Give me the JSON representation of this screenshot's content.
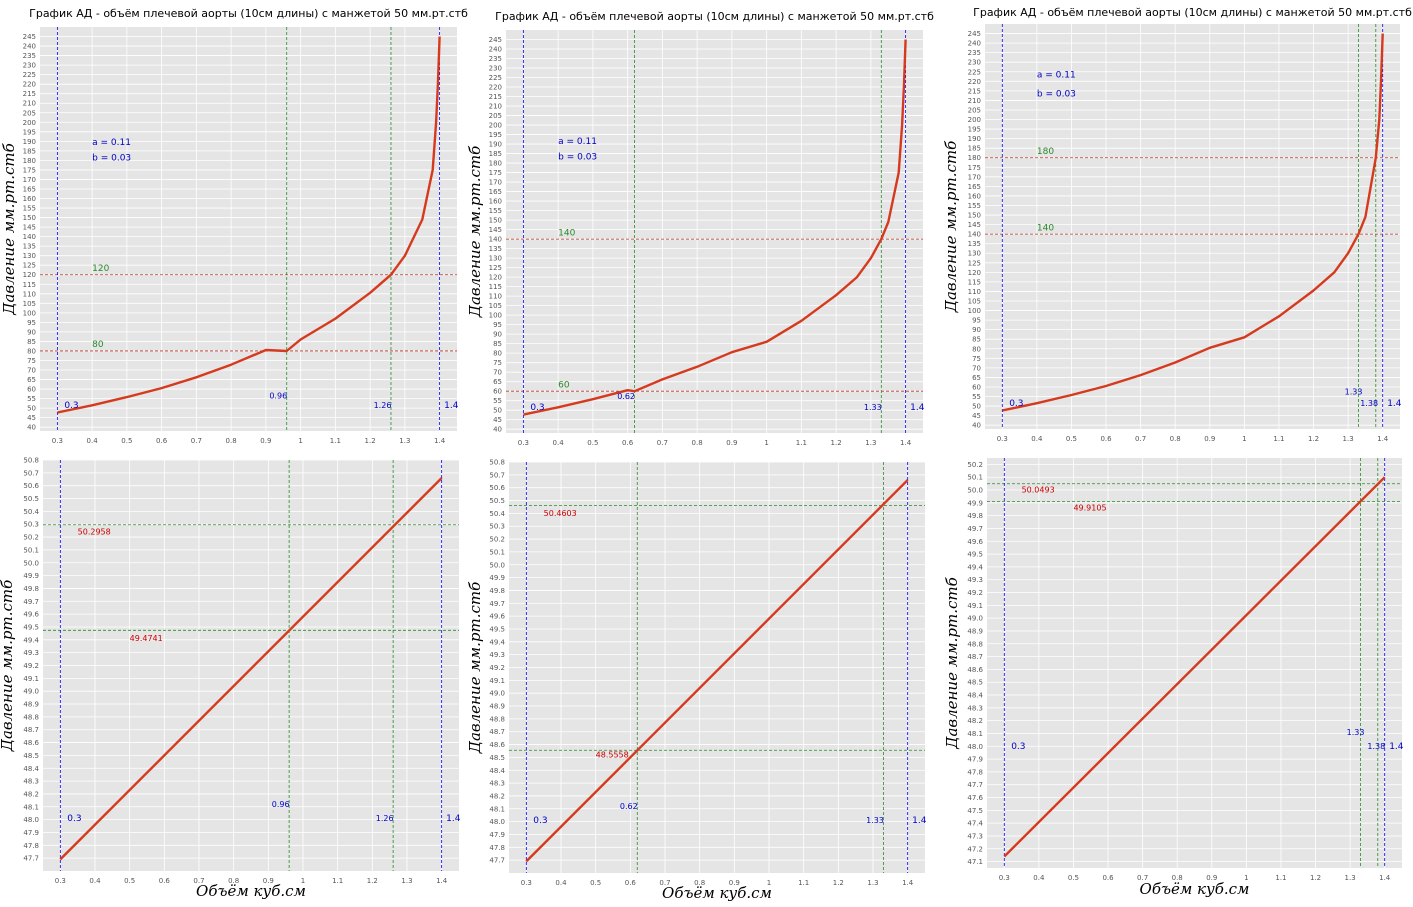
{
  "chart_data": [
    {
      "type": "line",
      "title": "График АД - объём плечевой аорты (10см длины) с манжетой 50 мм.рт.стб",
      "ylabel": "Давление мм.рт.стб",
      "xlabel": "",
      "xlim": [
        0.25,
        1.45
      ],
      "ylim": [
        38,
        250
      ],
      "xticks": [
        0.3,
        0.4,
        0.5,
        0.6,
        0.7,
        0.8,
        0.9,
        1.0,
        1.1,
        1.2,
        1.3,
        1.4
      ],
      "yticks": [
        40,
        45,
        50,
        55,
        60,
        65,
        70,
        75,
        80,
        85,
        90,
        95,
        100,
        105,
        110,
        115,
        120,
        125,
        130,
        135,
        140,
        145,
        150,
        155,
        160,
        165,
        170,
        175,
        180,
        185,
        190,
        195,
        200,
        205,
        210,
        215,
        220,
        225,
        230,
        235,
        240,
        245
      ],
      "tick_decimals": 0,
      "series": [
        {
          "x": [
            0.3,
            0.4,
            0.5,
            0.6,
            0.7,
            0.8,
            0.9,
            0.96,
            1.0,
            1.1,
            1.2,
            1.26,
            1.3,
            1.35,
            1.38,
            1.39,
            1.395,
            1.4
          ],
          "y": [
            47.7,
            51.5,
            55.8,
            60.5,
            66.2,
            72.8,
            80.5,
            80,
            86,
            97,
            110.5,
            120,
            130,
            149,
            175,
            200,
            220,
            245
          ]
        }
      ],
      "vlines_blue": [
        0.3,
        1.4
      ],
      "vlines_green": [
        0.96,
        1.26
      ],
      "hlines": [
        {
          "y": 120,
          "color": "#c0392b"
        },
        {
          "y": 80,
          "color": "#c0392b"
        }
      ],
      "annotations": [
        {
          "text": "a = 0.11",
          "x": 0.4,
          "y": 188,
          "color": "#0000cc",
          "size": 9
        },
        {
          "text": "b = 0.03",
          "x": 0.4,
          "y": 180,
          "color": "#0000cc",
          "size": 9
        },
        {
          "text": "120",
          "x": 0.4,
          "y": 122,
          "color": "#2a8a2a",
          "size": 9
        },
        {
          "text": "80",
          "x": 0.4,
          "y": 82,
          "color": "#2a8a2a",
          "size": 9
        },
        {
          "text": "0.3",
          "x": 0.32,
          "y": 50,
          "color": "#0000cc",
          "size": 9
        },
        {
          "text": "0.96",
          "x": 0.91,
          "y": 55,
          "color": "#0000cc",
          "size": 8
        },
        {
          "text": "1.26",
          "x": 1.21,
          "y": 50,
          "color": "#0000cc",
          "size": 8
        },
        {
          "text": "1.4",
          "x": 1.413,
          "y": 50,
          "color": "#0000cc",
          "size": 9
        }
      ]
    },
    {
      "type": "line",
      "title": "График АД - объём плечевой аорты (10см длины) с манжетой 50 мм.рт.стб",
      "ylabel": "Давление мм.рт.стб",
      "xlabel": "",
      "xlim": [
        0.25,
        1.45
      ],
      "ylim": [
        38,
        250
      ],
      "xticks": [
        0.3,
        0.4,
        0.5,
        0.6,
        0.7,
        0.8,
        0.9,
        1.0,
        1.1,
        1.2,
        1.3,
        1.4
      ],
      "yticks": [
        40,
        45,
        50,
        55,
        60,
        65,
        70,
        75,
        80,
        85,
        90,
        95,
        100,
        105,
        110,
        115,
        120,
        125,
        130,
        135,
        140,
        145,
        150,
        155,
        160,
        165,
        170,
        175,
        180,
        185,
        190,
        195,
        200,
        205,
        210,
        215,
        220,
        225,
        230,
        235,
        240,
        245
      ],
      "tick_decimals": 0,
      "series": [
        {
          "x": [
            0.3,
            0.4,
            0.5,
            0.6,
            0.62,
            0.7,
            0.8,
            0.9,
            1.0,
            1.1,
            1.2,
            1.26,
            1.3,
            1.33,
            1.35,
            1.38,
            1.39,
            1.395,
            1.4
          ],
          "y": [
            47.7,
            51.5,
            55.8,
            60.5,
            60,
            66.2,
            72.8,
            80.5,
            86,
            97,
            110.5,
            120,
            130,
            140,
            149,
            175,
            200,
            220,
            245
          ]
        }
      ],
      "vlines_blue": [
        0.3,
        1.4
      ],
      "vlines_green": [
        0.62,
        1.33
      ],
      "hlines": [
        {
          "y": 140,
          "color": "#c0392b"
        },
        {
          "y": 60,
          "color": "#c0392b"
        }
      ],
      "annotations": [
        {
          "text": "a = 0.11",
          "x": 0.4,
          "y": 190,
          "color": "#0000cc",
          "size": 9
        },
        {
          "text": "b = 0.03",
          "x": 0.4,
          "y": 182,
          "color": "#0000cc",
          "size": 9
        },
        {
          "text": "140",
          "x": 0.4,
          "y": 142,
          "color": "#2a8a2a",
          "size": 9
        },
        {
          "text": "60",
          "x": 0.4,
          "y": 62,
          "color": "#2a8a2a",
          "size": 9
        },
        {
          "text": "0.3",
          "x": 0.32,
          "y": 50,
          "color": "#0000cc",
          "size": 9
        },
        {
          "text": "0.62",
          "x": 0.57,
          "y": 56,
          "color": "#0000cc",
          "size": 8
        },
        {
          "text": "1.33",
          "x": 1.28,
          "y": 50,
          "color": "#0000cc",
          "size": 8
        },
        {
          "text": "1.4",
          "x": 1.413,
          "y": 50,
          "color": "#0000cc",
          "size": 9
        }
      ]
    },
    {
      "type": "line",
      "title": "График АД - объём плечевой аорты (10см длины) с манжетой 50 мм.рт.стб",
      "ylabel": "Давление мм.рт.стб",
      "xlabel": "",
      "xlim": [
        0.25,
        1.45
      ],
      "ylim": [
        38,
        250
      ],
      "xticks": [
        0.3,
        0.4,
        0.5,
        0.6,
        0.7,
        0.8,
        0.9,
        1.0,
        1.1,
        1.2,
        1.3,
        1.4
      ],
      "yticks": [
        40,
        45,
        50,
        55,
        60,
        65,
        70,
        75,
        80,
        85,
        90,
        95,
        100,
        105,
        110,
        115,
        120,
        125,
        130,
        135,
        140,
        145,
        150,
        155,
        160,
        165,
        170,
        175,
        180,
        185,
        190,
        195,
        200,
        205,
        210,
        215,
        220,
        225,
        230,
        235,
        240,
        245
      ],
      "tick_decimals": 0,
      "series": [
        {
          "x": [
            0.3,
            0.4,
            0.5,
            0.6,
            0.7,
            0.8,
            0.9,
            1.0,
            1.1,
            1.2,
            1.26,
            1.3,
            1.33,
            1.35,
            1.38,
            1.39,
            1.395,
            1.4
          ],
          "y": [
            47.7,
            51.5,
            55.8,
            60.5,
            66.2,
            72.8,
            80.5,
            86,
            97,
            110.5,
            120,
            130,
            140,
            149,
            180,
            200,
            220,
            245
          ]
        }
      ],
      "vlines_blue": [
        0.3,
        1.4
      ],
      "vlines_green": [
        1.33,
        1.38
      ],
      "hlines": [
        {
          "y": 180,
          "color": "#c0392b"
        },
        {
          "y": 140,
          "color": "#c0392b"
        }
      ],
      "annotations": [
        {
          "text": "a = 0.11",
          "x": 0.4,
          "y": 222,
          "color": "#0000cc",
          "size": 9
        },
        {
          "text": "b = 0.03",
          "x": 0.4,
          "y": 212,
          "color": "#0000cc",
          "size": 9
        },
        {
          "text": "180",
          "x": 0.4,
          "y": 182,
          "color": "#2a8a2a",
          "size": 9
        },
        {
          "text": "140",
          "x": 0.4,
          "y": 142,
          "color": "#2a8a2a",
          "size": 9
        },
        {
          "text": "0.3",
          "x": 0.32,
          "y": 50,
          "color": "#0000cc",
          "size": 9
        },
        {
          "text": "1.33",
          "x": 1.29,
          "y": 56,
          "color": "#0000cc",
          "size": 8
        },
        {
          "text": "1.38",
          "x": 1.335,
          "y": 50,
          "color": "#0000cc",
          "size": 8
        },
        {
          "text": "1.4",
          "x": 1.413,
          "y": 50,
          "color": "#0000cc",
          "size": 9
        }
      ]
    },
    {
      "type": "line",
      "title": "",
      "ylabel": "Давление мм.рт.стб",
      "xlabel": "Объём куб.см",
      "xlim": [
        0.25,
        1.45
      ],
      "ylim": [
        47.6,
        50.8
      ],
      "xticks": [
        0.3,
        0.4,
        0.5,
        0.6,
        0.7,
        0.8,
        0.9,
        1.0,
        1.1,
        1.2,
        1.3,
        1.4
      ],
      "yticks": [
        47.7,
        47.8,
        47.9,
        48.0,
        48.1,
        48.2,
        48.3,
        48.4,
        48.5,
        48.6,
        48.7,
        48.8,
        48.9,
        49.0,
        49.1,
        49.2,
        49.3,
        49.4,
        49.5,
        49.6,
        49.7,
        49.8,
        49.9,
        50.0,
        50.1,
        50.2,
        50.3,
        50.4,
        50.5,
        50.6,
        50.7,
        50.8
      ],
      "tick_decimals": 1,
      "series": [
        {
          "x": [
            0.3,
            1.4
          ],
          "y": [
            47.69,
            50.66
          ]
        }
      ],
      "vlines_blue": [
        0.3,
        1.4
      ],
      "vlines_green": [
        0.96,
        1.26
      ],
      "hlines": [
        {
          "y": 50.2958,
          "color": "#2a8a2a"
        },
        {
          "y": 49.4741,
          "color": "#2a8a2a"
        }
      ],
      "annotations": [
        {
          "text": "50.2958",
          "x": 0.35,
          "y": 50.22,
          "color": "#cc0000",
          "size": 8
        },
        {
          "text": "49.4741",
          "x": 0.5,
          "y": 49.39,
          "color": "#cc0000",
          "size": 8
        },
        {
          "text": "0.3",
          "x": 0.32,
          "y": 47.99,
          "color": "#0000cc",
          "size": 9
        },
        {
          "text": "0.96",
          "x": 0.91,
          "y": 48.1,
          "color": "#0000cc",
          "size": 8
        },
        {
          "text": "1.26",
          "x": 1.21,
          "y": 47.99,
          "color": "#0000cc",
          "size": 8
        },
        {
          "text": "1.4",
          "x": 1.413,
          "y": 47.99,
          "color": "#0000cc",
          "size": 9
        }
      ]
    },
    {
      "type": "line",
      "title": "",
      "ylabel": "Давление мм.рт.стб",
      "xlabel": "Объём куб.см",
      "xlim": [
        0.25,
        1.45
      ],
      "ylim": [
        47.6,
        50.8
      ],
      "xticks": [
        0.3,
        0.4,
        0.5,
        0.6,
        0.7,
        0.8,
        0.9,
        1.0,
        1.1,
        1.2,
        1.3,
        1.4
      ],
      "yticks": [
        47.7,
        47.8,
        47.9,
        48.0,
        48.1,
        48.2,
        48.3,
        48.4,
        48.5,
        48.6,
        48.7,
        48.8,
        48.9,
        49.0,
        49.1,
        49.2,
        49.3,
        49.4,
        49.5,
        49.6,
        49.7,
        49.8,
        49.9,
        50.0,
        50.1,
        50.2,
        50.3,
        50.4,
        50.5,
        50.6,
        50.7,
        50.8
      ],
      "tick_decimals": 1,
      "series": [
        {
          "x": [
            0.3,
            1.4
          ],
          "y": [
            47.69,
            50.66
          ]
        }
      ],
      "vlines_blue": [
        0.3,
        1.4
      ],
      "vlines_green": [
        0.62,
        1.33
      ],
      "hlines": [
        {
          "y": 50.4603,
          "color": "#2a8a2a"
        },
        {
          "y": 48.5558,
          "color": "#2a8a2a"
        }
      ],
      "annotations": [
        {
          "text": "50.4603",
          "x": 0.35,
          "y": 50.38,
          "color": "#cc0000",
          "size": 8
        },
        {
          "text": "48.5558",
          "x": 0.5,
          "y": 48.5,
          "color": "#cc0000",
          "size": 8
        },
        {
          "text": "0.3",
          "x": 0.32,
          "y": 47.99,
          "color": "#0000cc",
          "size": 9
        },
        {
          "text": "0.62",
          "x": 0.57,
          "y": 48.1,
          "color": "#0000cc",
          "size": 8
        },
        {
          "text": "1.33",
          "x": 1.28,
          "y": 47.99,
          "color": "#0000cc",
          "size": 8
        },
        {
          "text": "1.4",
          "x": 1.413,
          "y": 47.99,
          "color": "#0000cc",
          "size": 9
        }
      ]
    },
    {
      "type": "line",
      "title": "",
      "ylabel": "Давление мм.рт.стб",
      "xlabel": "Объём куб.см",
      "xlim": [
        0.25,
        1.45
      ],
      "ylim": [
        47.05,
        50.25
      ],
      "xticks": [
        0.3,
        0.4,
        0.5,
        0.6,
        0.7,
        0.8,
        0.9,
        1.0,
        1.1,
        1.2,
        1.3,
        1.4
      ],
      "yticks": [
        47.1,
        47.2,
        47.3,
        47.4,
        47.5,
        47.6,
        47.7,
        47.8,
        47.9,
        48.0,
        48.1,
        48.2,
        48.3,
        48.4,
        48.5,
        48.6,
        48.7,
        48.8,
        48.9,
        49.0,
        49.1,
        49.2,
        49.3,
        49.4,
        49.5,
        49.6,
        49.7,
        49.8,
        49.9,
        50.0,
        50.1,
        50.2
      ],
      "tick_decimals": 1,
      "series": [
        {
          "x": [
            0.3,
            1.4
          ],
          "y": [
            47.14,
            50.1
          ]
        }
      ],
      "vlines_blue": [
        0.3,
        1.4
      ],
      "vlines_green": [
        1.33,
        1.38
      ],
      "hlines": [
        {
          "y": 50.0493,
          "color": "#2a8a2a"
        },
        {
          "y": 49.9105,
          "color": "#2a8a2a"
        }
      ],
      "annotations": [
        {
          "text": "50.0493",
          "x": 0.35,
          "y": 49.98,
          "color": "#cc0000",
          "size": 8
        },
        {
          "text": "49.9105",
          "x": 0.5,
          "y": 49.84,
          "color": "#cc0000",
          "size": 8
        },
        {
          "text": "0.3",
          "x": 0.32,
          "y": 47.98,
          "color": "#0000cc",
          "size": 9
        },
        {
          "text": "1.33",
          "x": 1.29,
          "y": 48.09,
          "color": "#0000cc",
          "size": 8
        },
        {
          "text": "1.38",
          "x": 1.35,
          "y": 47.98,
          "color": "#0000cc",
          "size": 8
        },
        {
          "text": "1.4",
          "x": 1.413,
          "y": 47.98,
          "color": "#0000cc",
          "size": 9
        }
      ]
    }
  ],
  "colors": {
    "curve": "#d63a1e",
    "plot_bg": "#e5e5e5",
    "grid": "#ffffff",
    "vline_blue": "#0000ff",
    "vline_green": "#2a8a2a"
  }
}
